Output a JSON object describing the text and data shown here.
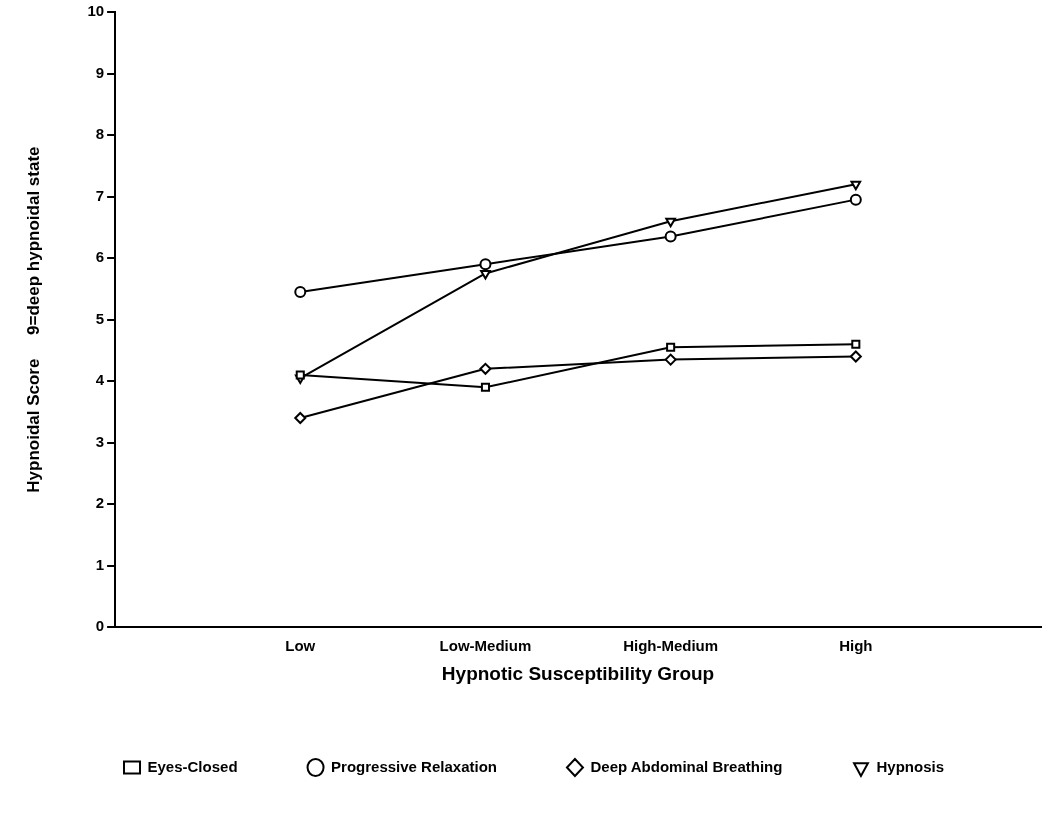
{
  "chart_data": {
    "type": "line",
    "xlabel": "Hypnotic Susceptibility Group",
    "ylabel": "Hypnoidal Score     9=deep hypnoidal state",
    "categories": [
      "Low",
      "Low-Medium",
      "High-Medium",
      "High"
    ],
    "ylim": [
      0,
      10
    ],
    "yticks": [
      0,
      1,
      2,
      3,
      4,
      5,
      6,
      7,
      8,
      9,
      10
    ],
    "grid": false,
    "legend": "bottom",
    "line_style": "solid",
    "series": [
      {
        "name": "Eyes-Closed",
        "color": "#000000",
        "marker": "square",
        "values": [
          4.1,
          3.9,
          4.55,
          4.6
        ]
      },
      {
        "name": "Progressive Relaxation",
        "color": "#000000",
        "marker": "circle",
        "values": [
          5.45,
          5.9,
          6.35,
          6.95
        ]
      },
      {
        "name": "Deep Abdominal Breathing",
        "color": "#000000",
        "marker": "diamond",
        "values": [
          3.4,
          4.2,
          4.35,
          4.4
        ]
      },
      {
        "name": "Hypnosis",
        "color": "#000000",
        "marker": "triangle-down",
        "values": [
          4.05,
          5.75,
          6.6,
          7.2
        ]
      }
    ]
  }
}
